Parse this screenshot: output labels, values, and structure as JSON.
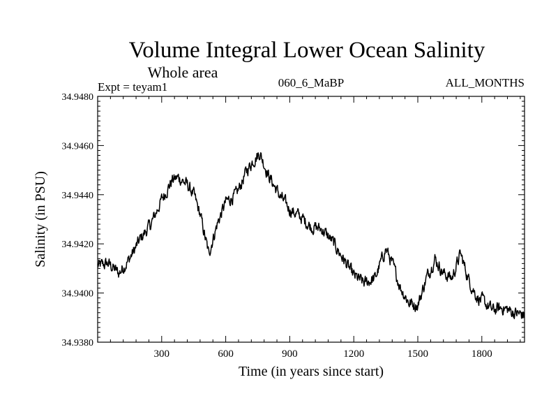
{
  "chart_data": {
    "type": "line",
    "title": "Volume Integral Lower Ocean Salinity",
    "subtitle": "Whole area",
    "experiment": "Expt = teyam1",
    "run_label": "060_6_MaBP",
    "months_label": "ALL_MONTHS",
    "xlabel": "Time (in years since start)",
    "ylabel": "Salinity (in PSU)",
    "xlim": [
      0,
      2000
    ],
    "ylim": [
      34.938,
      34.948
    ],
    "x_ticks": [
      300,
      600,
      900,
      1200,
      1500,
      1800
    ],
    "x_tick_labels": [
      "300",
      "600",
      "900",
      "1200",
      "1500",
      "1800"
    ],
    "y_ticks": [
      34.938,
      34.94,
      34.942,
      34.944,
      34.946,
      34.948
    ],
    "y_tick_labels": [
      "34.9380",
      "34.9400",
      "34.9420",
      "34.9440",
      "34.9460",
      "34.9480"
    ],
    "grid": false,
    "legend": "none",
    "series": [
      {
        "name": "Salinity",
        "color": "#000000",
        "x": [
          0,
          50,
          100,
          150,
          200,
          250,
          300,
          350,
          380,
          420,
          450,
          480,
          520,
          560,
          600,
          650,
          700,
          730,
          760,
          800,
          850,
          900,
          950,
          1000,
          1050,
          1100,
          1150,
          1200,
          1250,
          1300,
          1350,
          1380,
          1420,
          1460,
          1500,
          1540,
          1580,
          1620,
          1660,
          1700,
          1740,
          1780,
          1800,
          1850,
          1900,
          1950,
          2000
        ],
        "y": [
          34.9411,
          34.9412,
          34.9408,
          34.9414,
          34.9422,
          34.9428,
          34.9438,
          34.9446,
          34.9447,
          34.9444,
          34.944,
          34.9432,
          34.9416,
          34.9428,
          34.9437,
          34.944,
          34.945,
          34.9454,
          34.9457,
          34.9448,
          34.944,
          34.9434,
          34.9431,
          34.9427,
          34.9426,
          34.9421,
          34.9414,
          34.9407,
          34.9404,
          34.9406,
          34.9418,
          34.9412,
          34.9402,
          34.9396,
          34.9395,
          34.9406,
          34.9414,
          34.9408,
          34.9406,
          34.9416,
          34.9405,
          34.9398,
          34.9397,
          34.9393,
          34.9394,
          34.9392,
          34.9391
        ]
      }
    ]
  }
}
